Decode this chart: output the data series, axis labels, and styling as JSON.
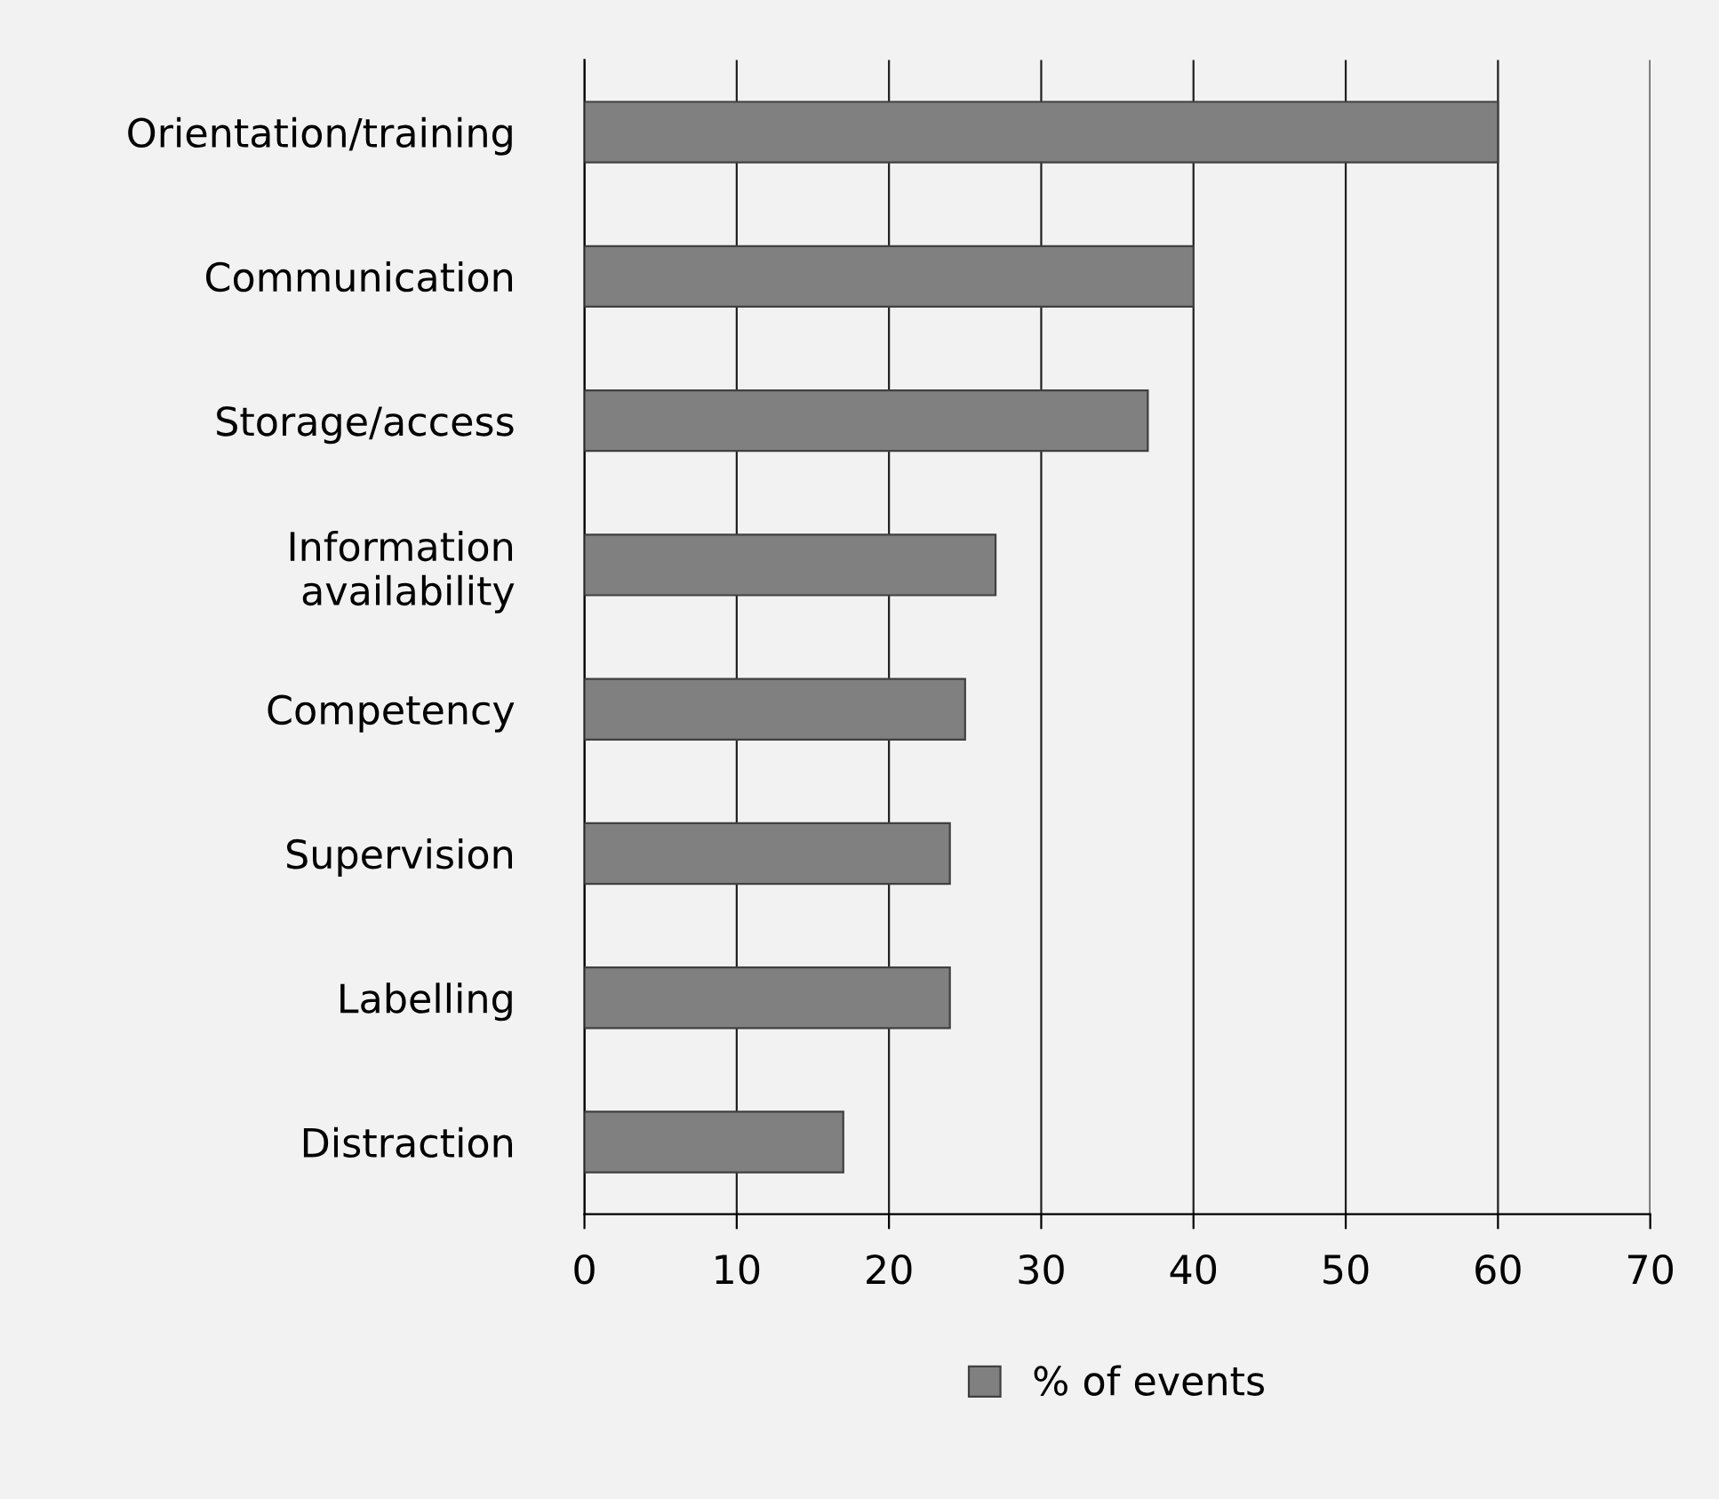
{
  "chart_data": {
    "type": "bar",
    "orientation": "horizontal",
    "categories": [
      "Orientation/training",
      "Communication",
      "Storage/access",
      "Information\navailability",
      "Competency",
      "Supervision",
      "Labelling",
      "Distraction"
    ],
    "series": [
      {
        "name": "% of events",
        "color": "#808080",
        "values": [
          60,
          40,
          37,
          27,
          25,
          24,
          24,
          17
        ]
      }
    ],
    "xlim": [
      0,
      70
    ],
    "xticks": [
      0,
      10,
      20,
      30,
      40,
      50,
      60,
      70
    ],
    "grid": "x",
    "legend": "bottom"
  }
}
